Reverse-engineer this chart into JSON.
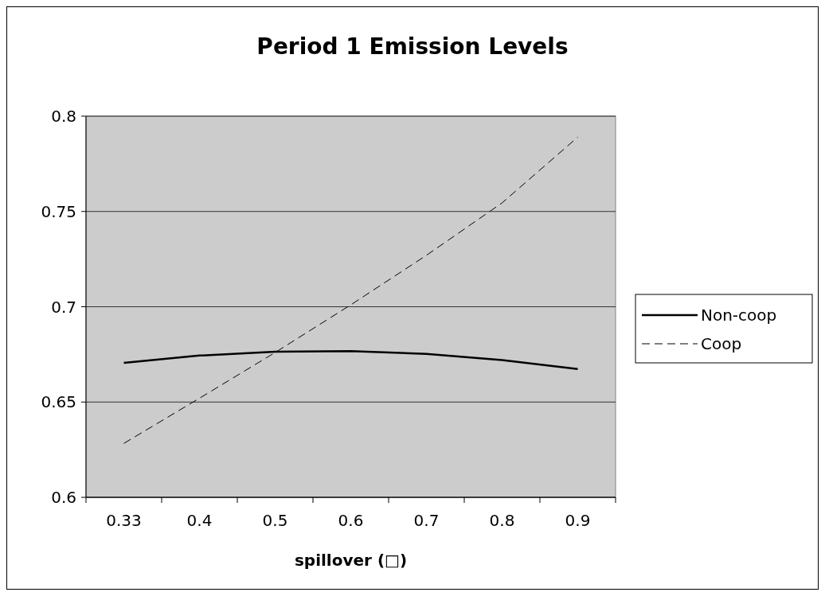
{
  "chart_data": {
    "type": "line",
    "title": "Period 1 Emission Levels",
    "xlabel": "spillover (□)",
    "categories": [
      "0.33",
      "0.4",
      "0.5",
      "0.6",
      "0.7",
      "0.8",
      "0.9"
    ],
    "series": [
      {
        "name": "Non-coop",
        "color": "#000000",
        "line_style": "solid",
        "values": [
          0.6706,
          0.6744,
          0.6764,
          0.6767,
          0.6753,
          0.672,
          0.6673
        ]
      },
      {
        "name": "Coop",
        "color": "#000000",
        "line_style": "dashed",
        "values": [
          0.6283,
          0.652,
          0.676,
          0.701,
          0.727,
          0.7545,
          0.789
        ]
      }
    ],
    "ylim": [
      0.6,
      0.8
    ],
    "yticks": [
      0.6,
      0.65,
      0.7,
      0.75,
      0.8
    ],
    "grid": "y",
    "legend": "right",
    "marker": "none"
  }
}
